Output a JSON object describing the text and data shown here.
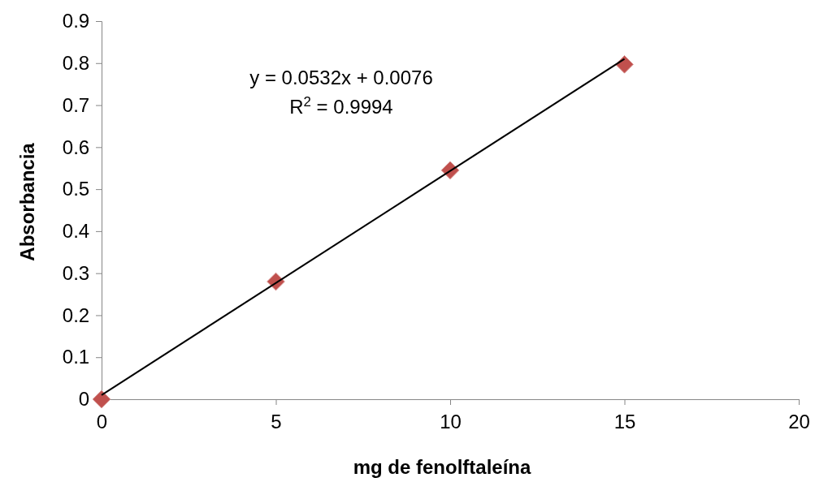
{
  "chart_data": {
    "type": "scatter",
    "xlabel": "mg de fenolftaleína",
    "ylabel": "Absorbancia",
    "series": [
      {
        "color": "#c0504d",
        "x": [
          0,
          5,
          10,
          15
        ],
        "values": [
          0,
          0.28,
          0.545,
          0.797
        ],
        "marker": "diamond"
      },
      {
        "type": "line",
        "color": "#000000",
        "x": [
          0,
          15
        ],
        "values": [
          0.01,
          0.81
        ],
        "marker": "none",
        "line_style": "solid"
      }
    ],
    "xlim": [
      0,
      20
    ],
    "xticks": [
      0,
      5,
      10,
      15,
      20
    ],
    "ylim": [
      0,
      0.9
    ],
    "yticks": [
      0,
      0.1,
      0.2,
      0.3,
      0.4,
      0.5,
      0.6,
      0.7,
      0.8,
      0.9
    ],
    "grid": false,
    "annotations": [
      "y = 0.0532x + 0.0076",
      "R$^{2}$ = 0.9994"
    ]
  }
}
